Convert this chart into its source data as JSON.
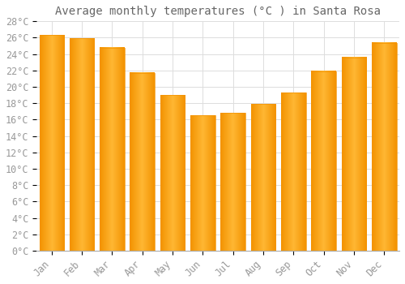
{
  "title": "Average monthly temperatures (°C ) in Santa Rosa",
  "months": [
    "Jan",
    "Feb",
    "Mar",
    "Apr",
    "May",
    "Jun",
    "Jul",
    "Aug",
    "Sep",
    "Oct",
    "Nov",
    "Dec"
  ],
  "values": [
    26.3,
    25.9,
    24.8,
    21.7,
    19.0,
    16.5,
    16.8,
    17.9,
    19.3,
    21.9,
    23.6,
    25.4
  ],
  "bar_color_center": "#FFB733",
  "bar_color_edge": "#F39200",
  "background_color": "#FFFFFF",
  "grid_color": "#DDDDDD",
  "text_color": "#999999",
  "ylim": [
    0,
    28
  ],
  "ytick_step": 2,
  "title_fontsize": 10,
  "tick_fontsize": 8.5,
  "font_family": "monospace"
}
